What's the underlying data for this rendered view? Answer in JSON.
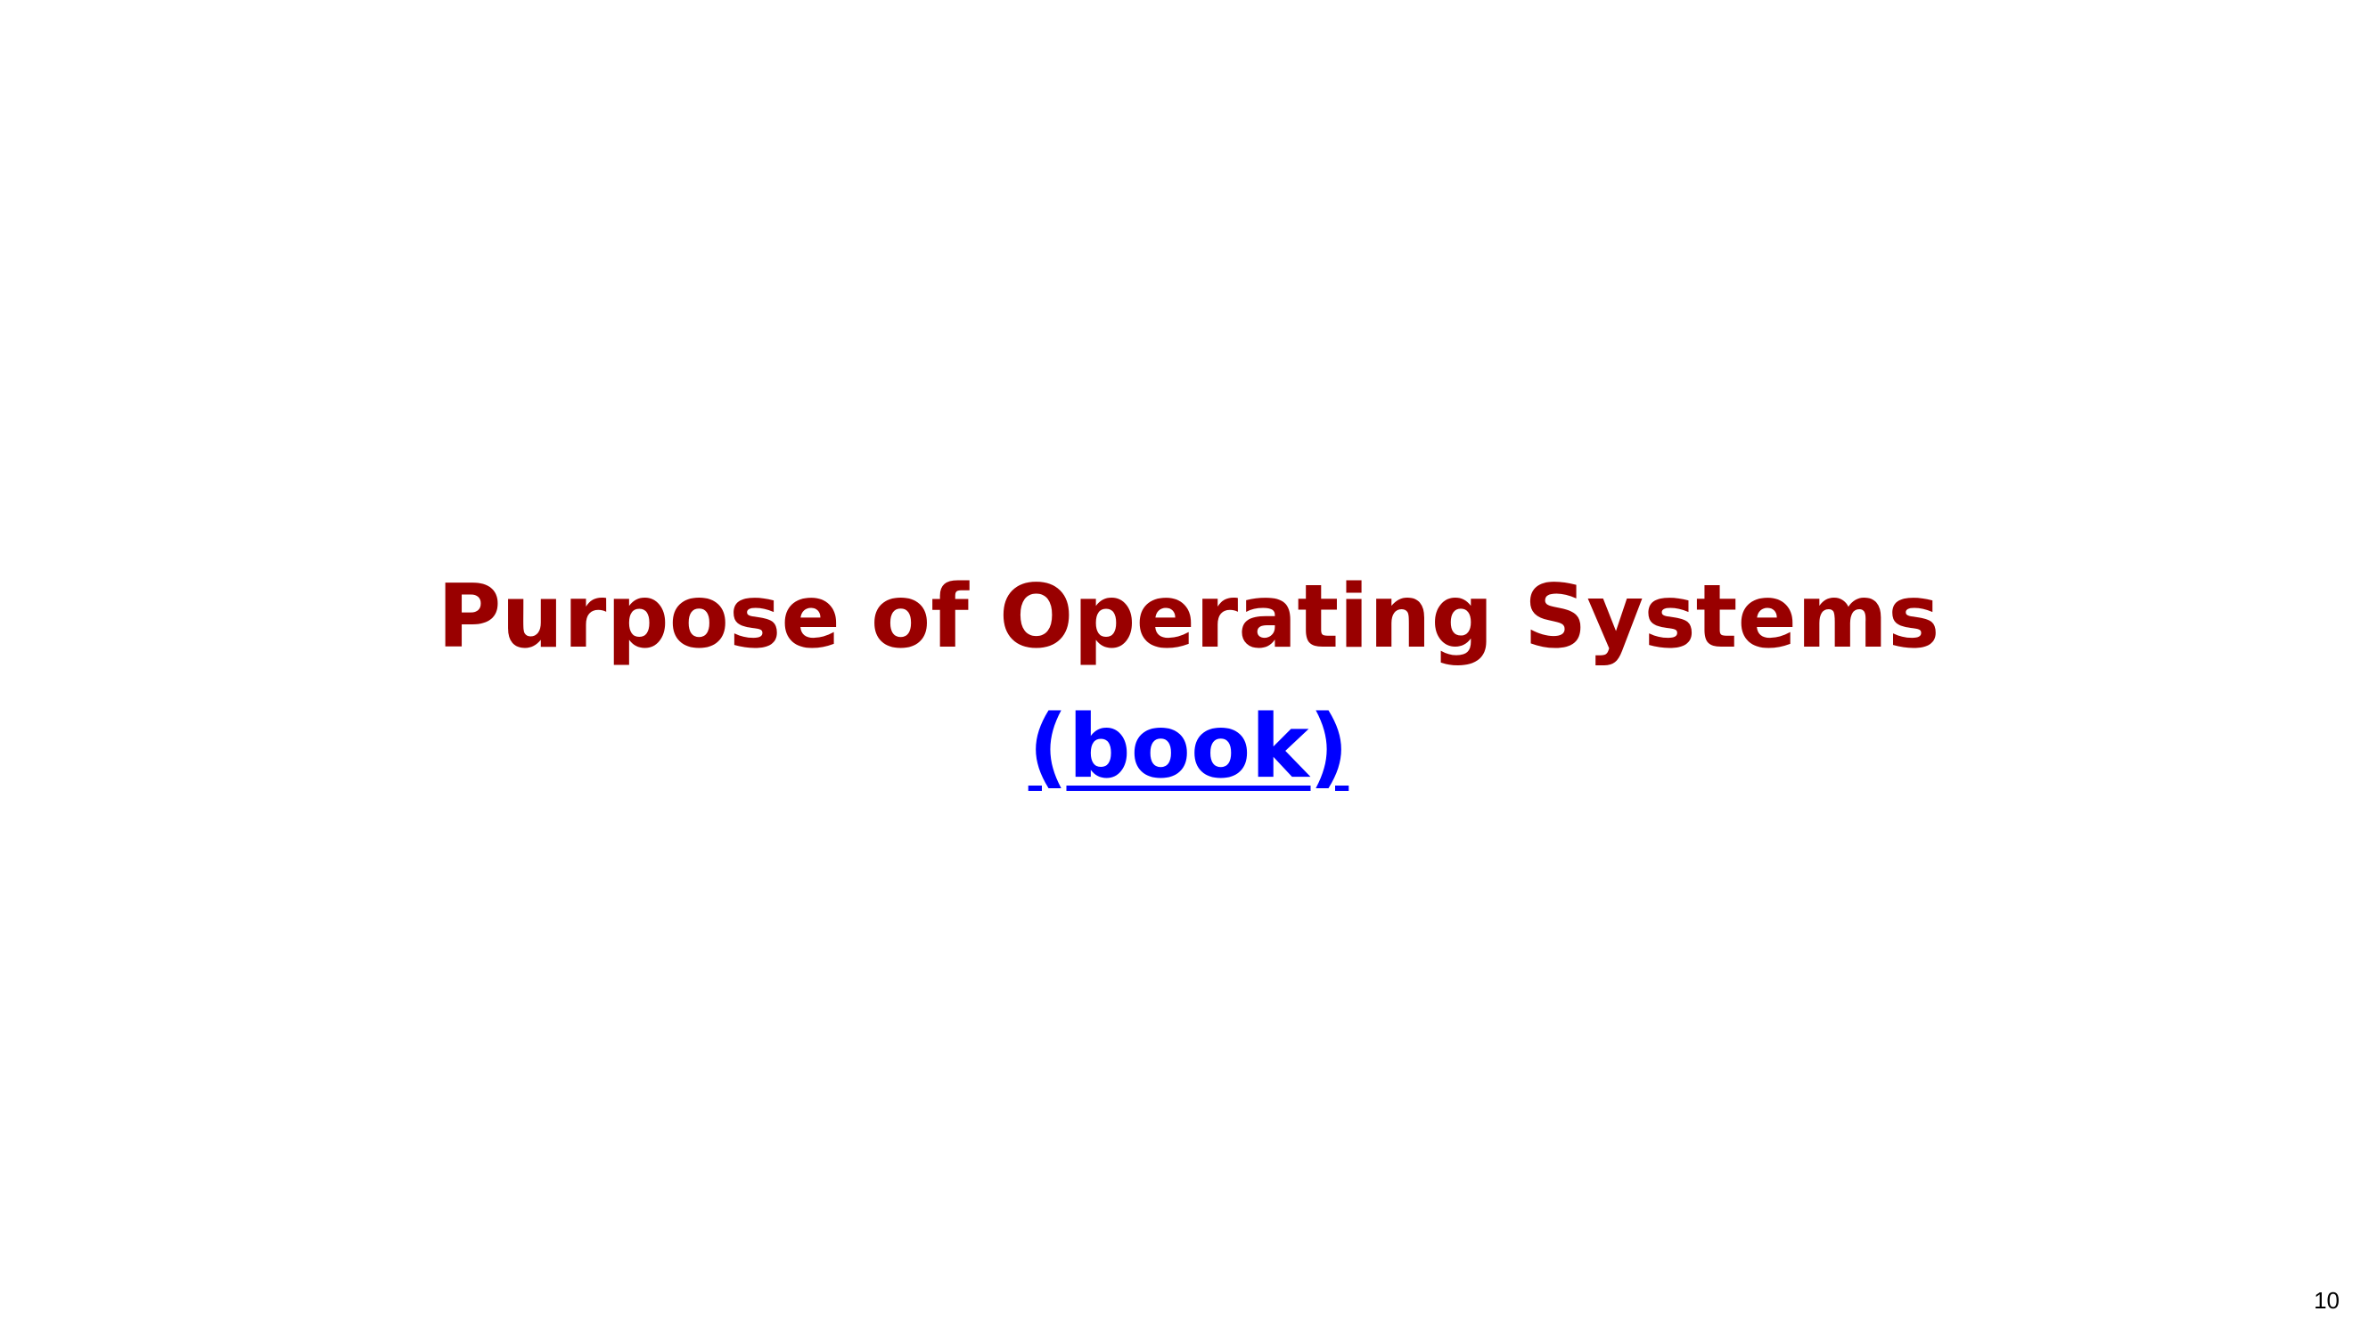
{
  "slide": {
    "title": "Purpose of Operating Systems",
    "link_text": "(book)",
    "slide_number": "10"
  },
  "colors": {
    "title": "#990000",
    "link": "#0000ff",
    "background": "#ffffff"
  }
}
